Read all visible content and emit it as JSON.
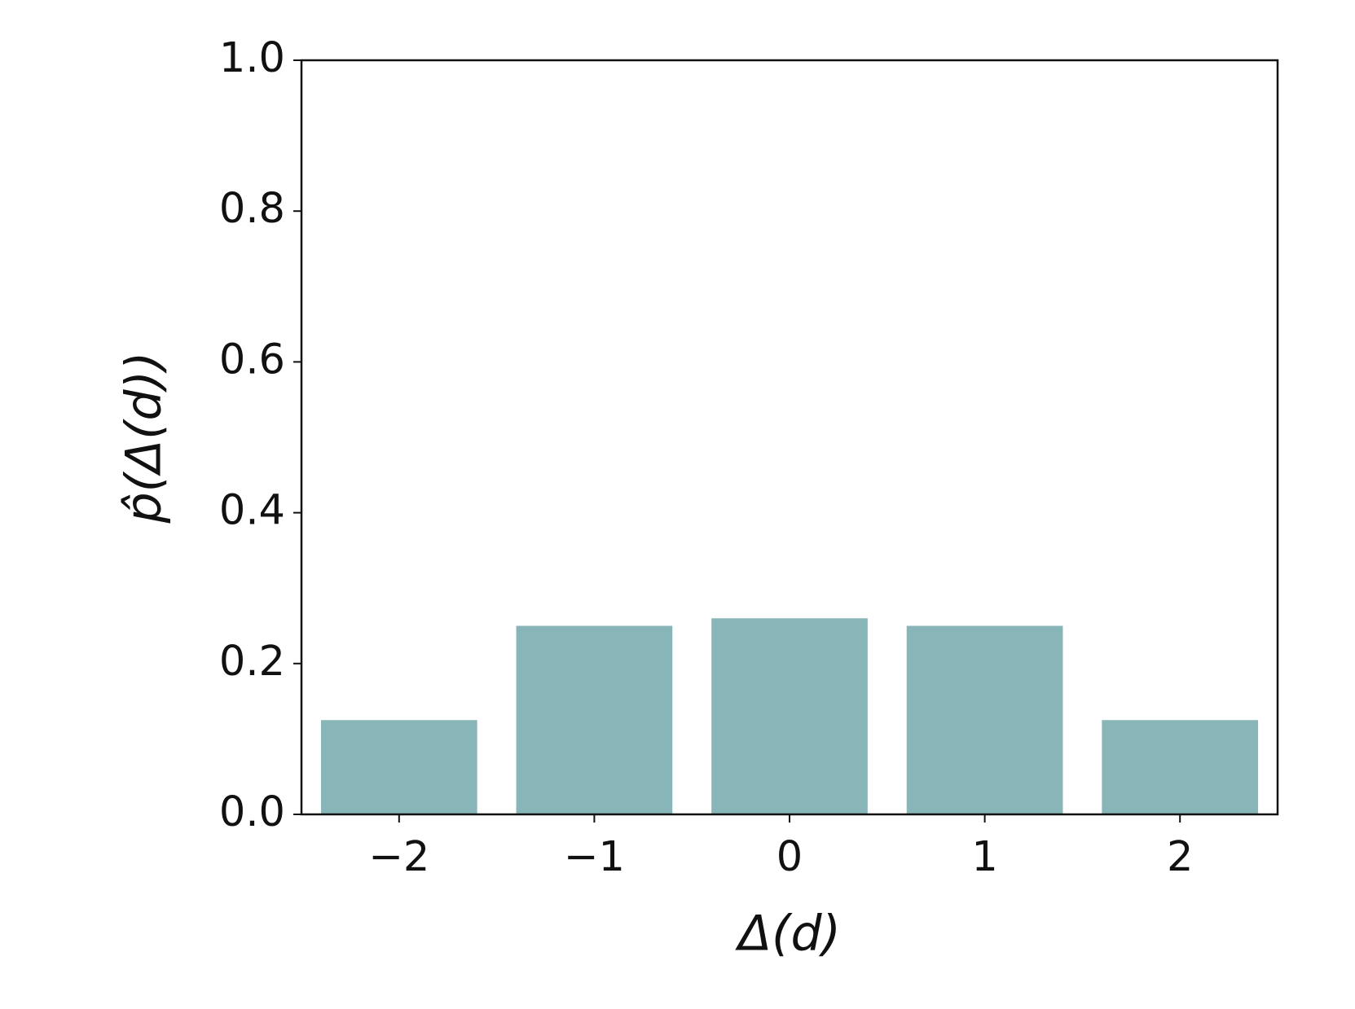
{
  "chart_data": {
    "type": "bar",
    "x_label": "Δ(d)",
    "y_label": "p̂(Δ(d))",
    "x": [
      -2,
      -1,
      0,
      1,
      2
    ],
    "values": [
      0.125,
      0.25,
      0.26,
      0.25,
      0.125
    ],
    "color": "#88b5b7",
    "xlim": [
      -2.5,
      2.5
    ],
    "xticks": [
      {
        "value": -2,
        "label": "−2"
      },
      {
        "value": -1,
        "label": "−1"
      },
      0,
      1,
      2
    ],
    "ylim": [
      0,
      1
    ],
    "yticks": [
      {
        "value": 0,
        "label": "0.0"
      },
      0.2,
      0.4,
      0.6,
      0.8,
      {
        "value": 1,
        "label": "1.0"
      }
    ],
    "grid": false
  }
}
